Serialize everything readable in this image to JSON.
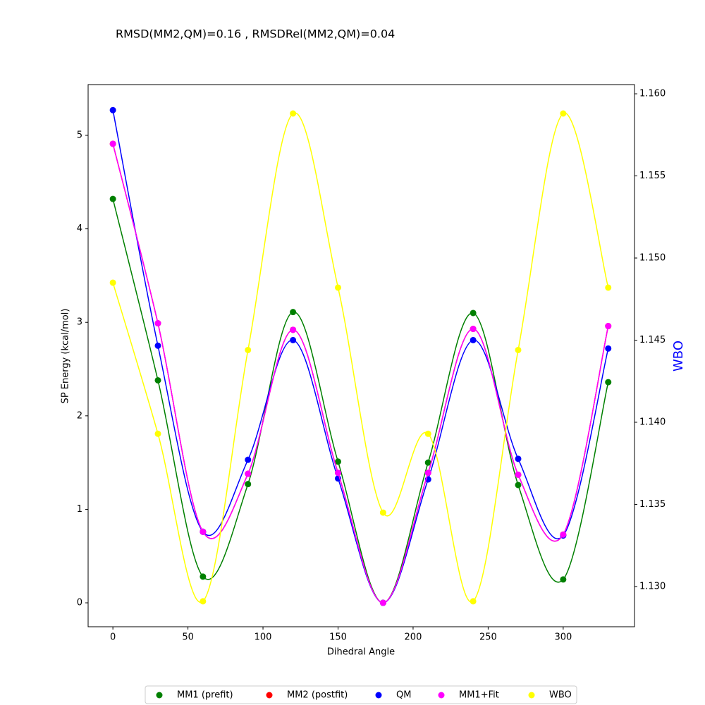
{
  "chart_data": {
    "type": "line",
    "title": "RMSD(MM2,QM)=0.16 , RMSDRel(MM2,QM)=0.04",
    "x_label": "Dihedral Angle",
    "y_label": "SP Energy (kcal/mol)",
    "y2_label": "WBO",
    "y2_label_color": "#0000ff",
    "x": [
      0,
      30,
      60,
      90,
      120,
      150,
      180,
      210,
      240,
      270,
      300,
      330
    ],
    "series": [
      {
        "name": "MM1 (prefit)",
        "color": "#008000",
        "values": [
          4.32,
          2.38,
          0.28,
          1.27,
          3.11,
          1.51,
          0.0,
          1.5,
          3.1,
          1.26,
          0.25,
          2.36
        ]
      },
      {
        "name": "MM2 (postfit)",
        "color": "#ff0000",
        "values": [
          4.91,
          2.99,
          0.76,
          1.38,
          2.92,
          1.39,
          0.0,
          1.39,
          2.93,
          1.37,
          0.73,
          2.96
        ]
      },
      {
        "name": "QM",
        "color": "#0000ff",
        "values": [
          5.27,
          2.75,
          0.76,
          1.53,
          2.81,
          1.33,
          0.0,
          1.32,
          2.81,
          1.54,
          0.72,
          2.72
        ]
      },
      {
        "name": "MM1+Fit",
        "color": "#ff00ff",
        "values": [
          4.91,
          2.99,
          0.76,
          1.38,
          2.92,
          1.39,
          0.0,
          1.39,
          2.93,
          1.37,
          0.73,
          2.96
        ]
      },
      {
        "name": "WBO",
        "color": "#ffff00",
        "axis": "y2",
        "values": [
          1.1485,
          1.1393,
          1.1291,
          1.1444,
          1.1588,
          1.1482,
          1.1345,
          1.1393,
          1.1291,
          1.1444,
          1.1588,
          1.1482
        ]
      }
    ],
    "xlim": [
      -16.5,
      347.5
    ],
    "xticks": [
      0,
      50,
      100,
      150,
      200,
      250,
      300
    ],
    "ylim": [
      -0.256,
      5.543
    ],
    "yticks": [
      0,
      1,
      2,
      3,
      4,
      5
    ],
    "y2lim": [
      1.12755,
      1.16056
    ],
    "y2ticks": [
      {
        "value": 1.13,
        "label": "1.130"
      },
      {
        "value": 1.135,
        "label": "1.135"
      },
      {
        "value": 1.14,
        "label": "1.140"
      },
      {
        "value": 1.145,
        "label": "1.145"
      },
      {
        "value": 1.15,
        "label": "1.150"
      },
      {
        "value": 1.155,
        "label": "1.155"
      },
      {
        "value": 1.16,
        "label": "1.160"
      }
    ],
    "smooth": true,
    "legend": "bottom"
  }
}
